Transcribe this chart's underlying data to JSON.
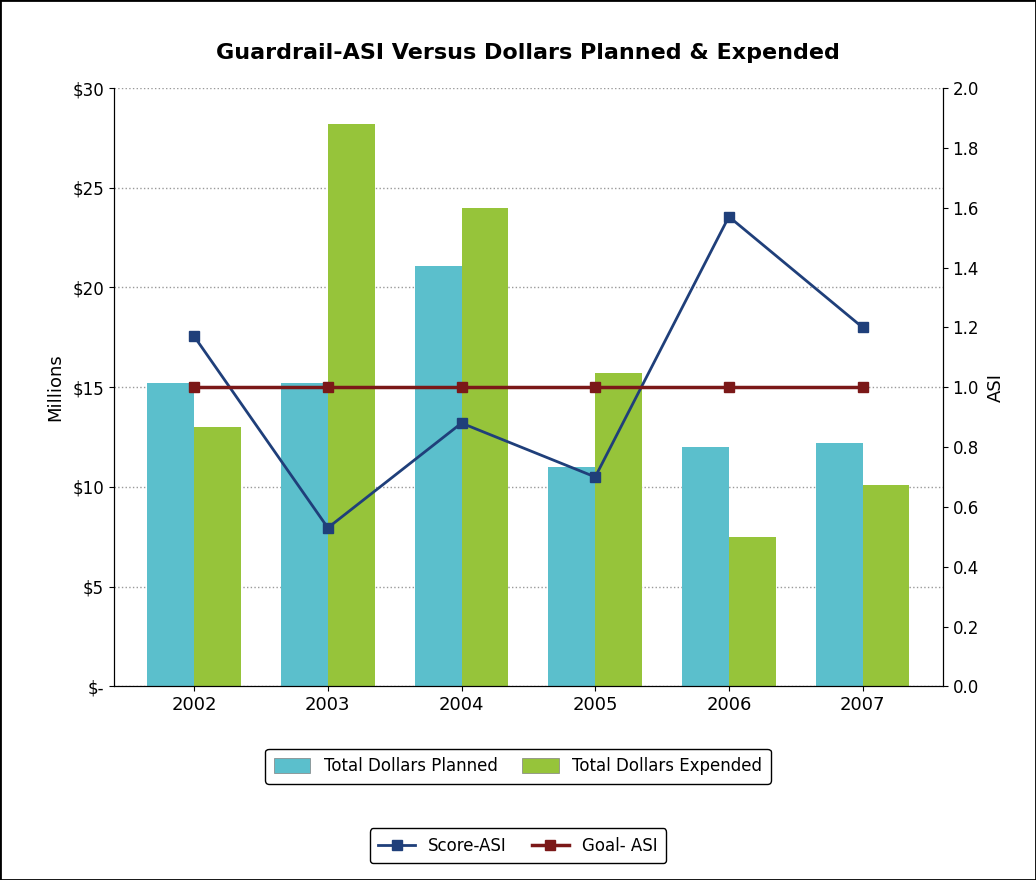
{
  "title": "Guardrail-ASI Versus Dollars Planned & Expended",
  "years": [
    2002,
    2003,
    2004,
    2005,
    2006,
    2007
  ],
  "planned": [
    15.2,
    15.2,
    21.1,
    11.0,
    12.0,
    12.2
  ],
  "expended": [
    13.0,
    28.2,
    24.0,
    15.7,
    7.5,
    10.1
  ],
  "score_asi": [
    1.17,
    0.53,
    0.88,
    0.7,
    1.57,
    1.2
  ],
  "goal_asi": [
    1.0,
    1.0,
    1.0,
    1.0,
    1.0,
    1.0
  ],
  "bar_color_planned": "#5BBFCC",
  "bar_color_expended": "#96C43A",
  "line_color_score": "#1F3F7A",
  "line_color_goal": "#7B1818",
  "ylabel_left": "Millions",
  "ylabel_right": "ASI",
  "ylim_left": [
    0,
    30
  ],
  "ylim_right": [
    0,
    2.0
  ],
  "yticks_left": [
    0,
    5,
    10,
    15,
    20,
    25,
    30
  ],
  "ytick_labels_left": [
    "$-",
    "$5",
    "$10",
    "$15",
    "$20",
    "$25",
    "$30"
  ],
  "yticks_right": [
    0.0,
    0.2,
    0.4,
    0.6,
    0.8,
    1.0,
    1.2,
    1.4,
    1.6,
    1.8,
    2.0
  ],
  "background_color": "#FFFFFF",
  "plot_background": "#FFFFFF",
  "legend_planned": "Total Dollars Planned",
  "legend_expended": "Total Dollars Expended",
  "legend_score": "Score-ASI",
  "legend_goal": "Goal- ASI",
  "bar_width": 0.35,
  "title_fontsize": 16,
  "axis_fontsize": 12,
  "tick_fontsize": 12
}
